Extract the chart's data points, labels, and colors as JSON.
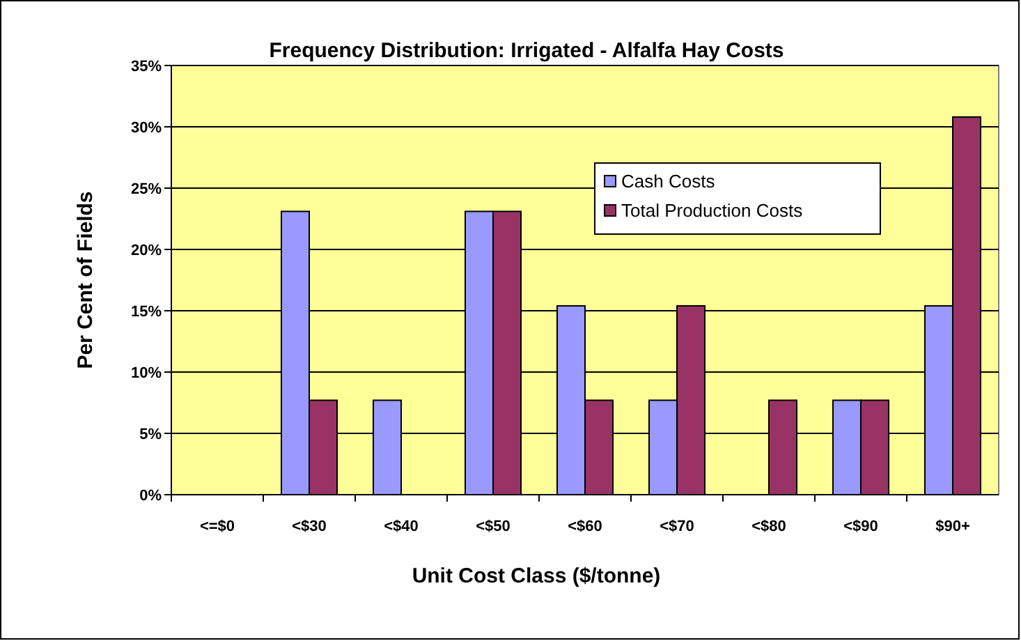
{
  "chart_data": {
    "type": "bar",
    "title": "Frequency Distribution: Irrigated - Alfalfa Hay Costs",
    "xlabel": "Unit Cost Class ($/tonne)",
    "ylabel": "Per Cent of Fields",
    "categories": [
      "<=$0",
      "<$30",
      "<$40",
      "<$50",
      "<$60",
      "<$70",
      "<$80",
      "<$90",
      "$90+"
    ],
    "series": [
      {
        "name": "Cash Costs",
        "color": "#9999ff",
        "values": [
          0,
          23.1,
          7.7,
          23.1,
          15.4,
          7.7,
          0,
          7.7,
          15.4
        ]
      },
      {
        "name": "Total Production Costs",
        "color": "#993366",
        "values": [
          0,
          7.7,
          0,
          23.1,
          7.7,
          15.4,
          7.7,
          7.7,
          30.8
        ]
      }
    ],
    "ylim": [
      0,
      35
    ],
    "yticks": [
      {
        "value": 0,
        "label": "0%"
      },
      {
        "value": 5,
        "label": "5%"
      },
      {
        "value": 10,
        "label": "10%"
      },
      {
        "value": 15,
        "label": "15%"
      },
      {
        "value": 20,
        "label": "20%"
      },
      {
        "value": 25,
        "label": "25%"
      },
      {
        "value": 30,
        "label": "30%"
      },
      {
        "value": 35,
        "label": "35%"
      }
    ],
    "grid": "y",
    "legend": "top right"
  }
}
